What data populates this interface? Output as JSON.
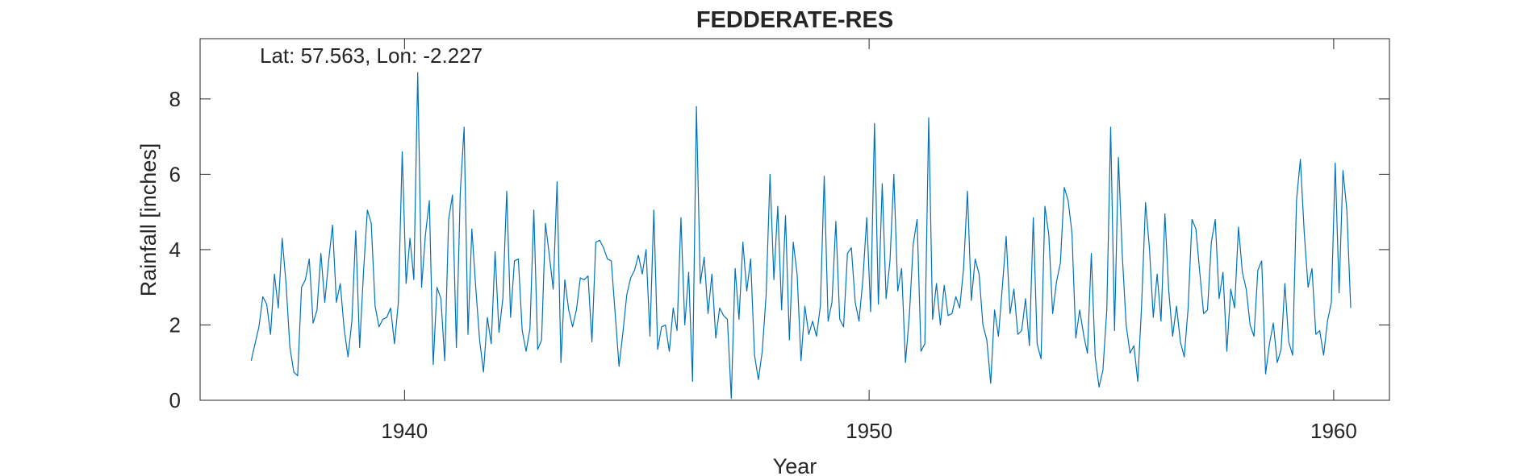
{
  "chart_data": {
    "type": "line",
    "title": "FEDDERATE-RES",
    "annotation": "Lat: 57.563, Lon: -2.227",
    "xlabel": "Year",
    "ylabel": "Rainfall [inches]",
    "xlim": [
      1935.6,
      1961.2
    ],
    "ylim": [
      0,
      9.6
    ],
    "xticks": [
      1940,
      1950,
      1960
    ],
    "yticks": [
      0,
      2,
      4,
      6,
      8
    ],
    "grid": false,
    "line_color": "#0072BD",
    "series": [
      {
        "x_start": 1936.7,
        "x_step": 0.0833333,
        "values": [
          1.05,
          1.5,
          1.95,
          2.75,
          2.55,
          1.75,
          3.35,
          2.45,
          4.3,
          3.1,
          1.4,
          0.75,
          0.65,
          3.0,
          3.2,
          3.75,
          2.05,
          2.4,
          3.9,
          2.6,
          3.7,
          4.65,
          2.6,
          3.1,
          1.9,
          1.15,
          2.1,
          4.5,
          1.4,
          3.4,
          5.05,
          4.7,
          2.5,
          1.95,
          2.15,
          2.2,
          2.45,
          1.5,
          2.6,
          6.6,
          3.1,
          4.3,
          3.2,
          8.7,
          3.0,
          4.4,
          5.3,
          0.95,
          3.0,
          2.7,
          1.05,
          4.8,
          5.45,
          1.4,
          5.5,
          7.25,
          1.75,
          4.55,
          3.0,
          1.6,
          0.75,
          2.2,
          1.5,
          3.95,
          1.8,
          2.7,
          5.55,
          2.2,
          3.7,
          3.75,
          1.85,
          1.3,
          1.9,
          5.05,
          1.35,
          1.6,
          4.7,
          3.85,
          2.95,
          5.8,
          1.0,
          3.2,
          2.4,
          1.95,
          2.4,
          3.25,
          3.2,
          3.3,
          1.55,
          4.2,
          4.25,
          4.05,
          3.75,
          3.7,
          2.3,
          0.9,
          1.8,
          2.8,
          3.25,
          3.45,
          3.85,
          3.35,
          4.0,
          1.7,
          5.05,
          1.35,
          1.95,
          2.0,
          1.3,
          2.45,
          1.85,
          4.85,
          2.0,
          3.4,
          0.5,
          7.8,
          3.1,
          3.8,
          2.3,
          3.35,
          1.65,
          2.45,
          2.25,
          2.15,
          0.05,
          3.5,
          2.15,
          4.2,
          2.9,
          3.75,
          1.2,
          0.55,
          1.3,
          2.8,
          6.0,
          3.2,
          5.15,
          2.4,
          4.9,
          1.6,
          4.2,
          3.35,
          1.05,
          2.5,
          1.75,
          2.1,
          1.7,
          2.5,
          5.95,
          2.1,
          2.6,
          4.75,
          2.15,
          1.95,
          3.9,
          4.05,
          2.6,
          2.1,
          3.2,
          4.85,
          2.35,
          7.35,
          2.55,
          5.75,
          2.7,
          3.7,
          6.0,
          2.9,
          3.5,
          1.0,
          2.25,
          4.15,
          4.8,
          1.3,
          1.5,
          7.5,
          2.15,
          3.1,
          2.0,
          3.05,
          2.25,
          2.3,
          2.75,
          2.45,
          3.5,
          5.55,
          2.65,
          3.75,
          3.35,
          2.0,
          1.6,
          0.45,
          2.4,
          1.7,
          3.0,
          4.35,
          2.3,
          2.95,
          1.75,
          1.85,
          2.7,
          1.45,
          4.85,
          1.5,
          1.1,
          5.15,
          4.4,
          2.3,
          3.15,
          3.65,
          5.65,
          5.3,
          4.45,
          1.65,
          2.4,
          1.75,
          1.25,
          3.9,
          1.15,
          0.35,
          0.8,
          2.4,
          7.25,
          1.85,
          6.45,
          3.85,
          2.0,
          1.25,
          1.45,
          0.5,
          2.55,
          5.25,
          4.05,
          2.2,
          3.35,
          2.1,
          4.95,
          2.9,
          1.7,
          2.5,
          1.55,
          1.15,
          2.45,
          4.8,
          4.55,
          3.4,
          2.3,
          2.4,
          4.2,
          4.8,
          2.7,
          3.4,
          1.3,
          2.95,
          2.45,
          4.6,
          3.4,
          2.95,
          2.0,
          1.7,
          3.45,
          3.7,
          0.7,
          1.5,
          2.05,
          1.0,
          1.35,
          3.1,
          1.55,
          1.2,
          5.3,
          6.4,
          4.45,
          3.0,
          3.5,
          1.75,
          1.85,
          1.2,
          2.1,
          2.6,
          6.3,
          2.85,
          6.1,
          5.05,
          2.45
        ]
      }
    ]
  }
}
